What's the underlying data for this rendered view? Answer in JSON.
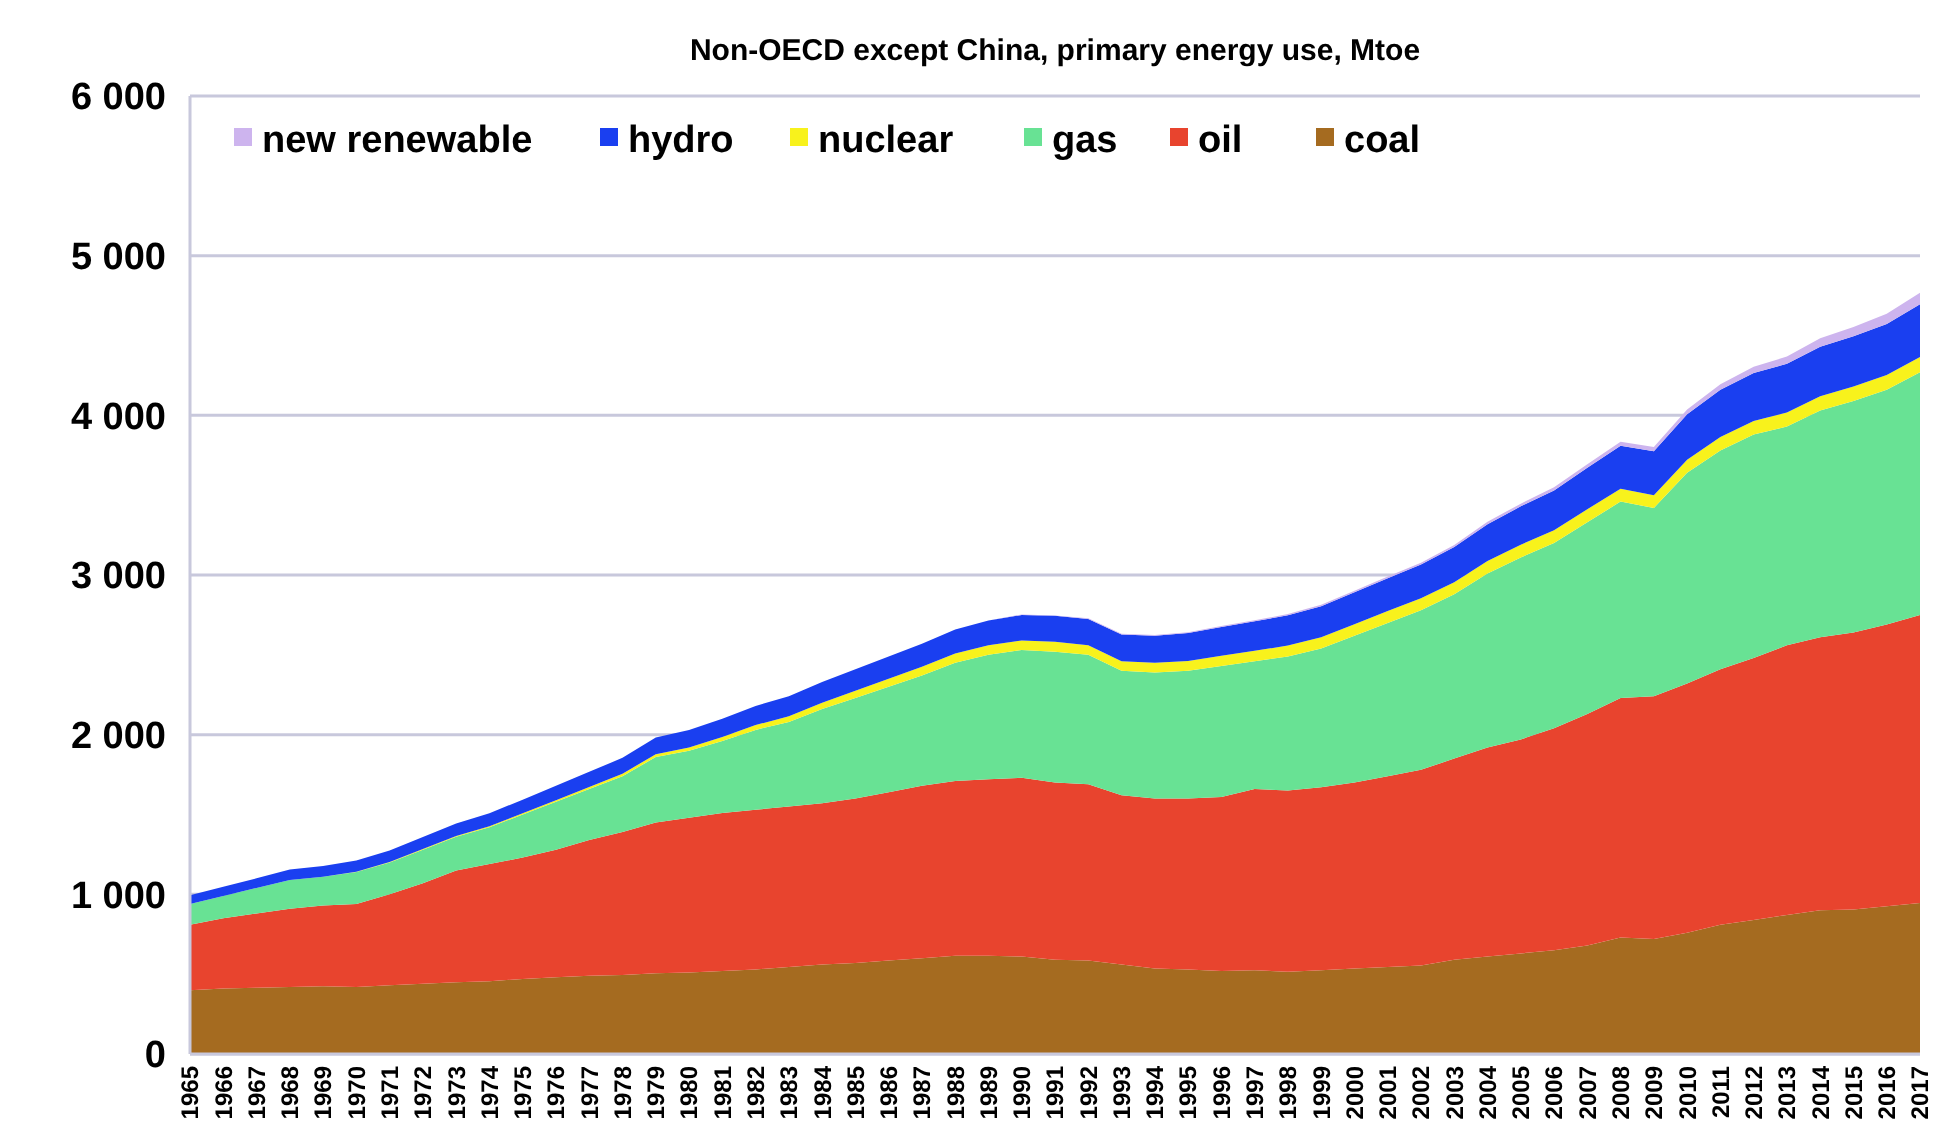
{
  "chart_data": {
    "type": "area",
    "stacked": true,
    "title": "Non-OECD except China, primary energy use, Mtoe",
    "categories": [
      "1965",
      "1966",
      "1967",
      "1968",
      "1969",
      "1970",
      "1971",
      "1972",
      "1973",
      "1974",
      "1975",
      "1976",
      "1977",
      "1978",
      "1979",
      "1980",
      "1981",
      "1982",
      "1983",
      "1984",
      "1985",
      "1986",
      "1987",
      "1988",
      "1989",
      "1990",
      "1991",
      "1992",
      "1993",
      "1994",
      "1995",
      "1996",
      "1997",
      "1998",
      "1999",
      "2000",
      "2001",
      "2002",
      "2003",
      "2004",
      "2005",
      "2006",
      "2007",
      "2008",
      "2009",
      "2010",
      "2011",
      "2012",
      "2013",
      "2014",
      "2015",
      "2016",
      "2017"
    ],
    "series": [
      {
        "name": "coal",
        "color": "#a56b20",
        "values": [
          400,
          410,
          415,
          420,
          425,
          420,
          430,
          440,
          450,
          455,
          470,
          480,
          490,
          495,
          505,
          510,
          520,
          530,
          545,
          560,
          570,
          585,
          600,
          615,
          615,
          610,
          590,
          585,
          560,
          535,
          530,
          520,
          525,
          515,
          525,
          535,
          545,
          555,
          590,
          610,
          630,
          650,
          680,
          730,
          720,
          760,
          810,
          840,
          870,
          900,
          905,
          925,
          945
        ]
      },
      {
        "name": "oil",
        "color": "#e8442e",
        "values": [
          410,
          440,
          465,
          490,
          505,
          520,
          570,
          630,
          700,
          735,
          760,
          800,
          850,
          895,
          945,
          970,
          990,
          1000,
          1005,
          1010,
          1030,
          1055,
          1080,
          1095,
          1105,
          1120,
          1110,
          1105,
          1060,
          1065,
          1070,
          1090,
          1135,
          1135,
          1145,
          1165,
          1195,
          1225,
          1260,
          1310,
          1340,
          1390,
          1450,
          1500,
          1520,
          1560,
          1600,
          1640,
          1690,
          1710,
          1735,
          1765,
          1805
        ]
      },
      {
        "name": "gas",
        "color": "#68e294",
        "values": [
          130,
          140,
          160,
          180,
          180,
          200,
          200,
          210,
          210,
          230,
          270,
          300,
          320,
          350,
          410,
          420,
          450,
          500,
          530,
          590,
          630,
          660,
          690,
          740,
          780,
          800,
          820,
          810,
          780,
          790,
          800,
          820,
          800,
          840,
          870,
          920,
          960,
          1000,
          1030,
          1090,
          1140,
          1160,
          1200,
          1230,
          1180,
          1320,
          1370,
          1400,
          1370,
          1420,
          1450,
          1470,
          1520
        ]
      },
      {
        "name": "nuclear",
        "color": "#f8f21c",
        "values": [
          0,
          0,
          0,
          0,
          0,
          2,
          3,
          4,
          5,
          6,
          8,
          10,
          12,
          15,
          18,
          20,
          25,
          30,
          35,
          40,
          45,
          50,
          55,
          58,
          60,
          60,
          62,
          60,
          60,
          60,
          62,
          65,
          65,
          68,
          70,
          72,
          75,
          75,
          75,
          78,
          80,
          80,
          82,
          80,
          80,
          82,
          85,
          85,
          88,
          90,
          90,
          92,
          95
        ]
      },
      {
        "name": "hydro",
        "color": "#1a3ff0",
        "values": [
          55,
          58,
          60,
          65,
          68,
          70,
          72,
          75,
          78,
          82,
          85,
          90,
          95,
          100,
          105,
          110,
          115,
          120,
          125,
          130,
          135,
          140,
          145,
          150,
          155,
          160,
          162,
          165,
          168,
          170,
          175,
          180,
          185,
          190,
          195,
          200,
          205,
          210,
          220,
          230,
          240,
          250,
          260,
          270,
          275,
          285,
          295,
          300,
          305,
          310,
          315,
          320,
          330
        ]
      },
      {
        "name": "new renewable",
        "color": "#cdb4ee",
        "values": [
          0,
          0,
          0,
          0,
          0,
          0,
          0,
          0,
          0,
          0,
          0,
          0,
          0,
          0,
          0,
          0,
          0,
          0,
          0,
          0,
          0,
          0,
          0,
          0,
          0,
          3,
          3,
          4,
          4,
          5,
          5,
          6,
          6,
          7,
          8,
          10,
          10,
          12,
          13,
          15,
          17,
          19,
          21,
          24,
          27,
          30,
          35,
          40,
          45,
          52,
          58,
          65,
          72
        ]
      }
    ],
    "ylim": [
      0,
      6000
    ],
    "yticks": [
      0,
      {
        "value": 1000,
        "label": "1 000"
      },
      {
        "value": 2000,
        "label": "2 000"
      },
      {
        "value": 3000,
        "label": "3 000"
      },
      {
        "value": 4000,
        "label": "4 000"
      },
      {
        "value": 5000,
        "label": "5 000"
      },
      {
        "value": 6000,
        "label": "6 000"
      }
    ],
    "grid": "y",
    "legend": "top left"
  }
}
